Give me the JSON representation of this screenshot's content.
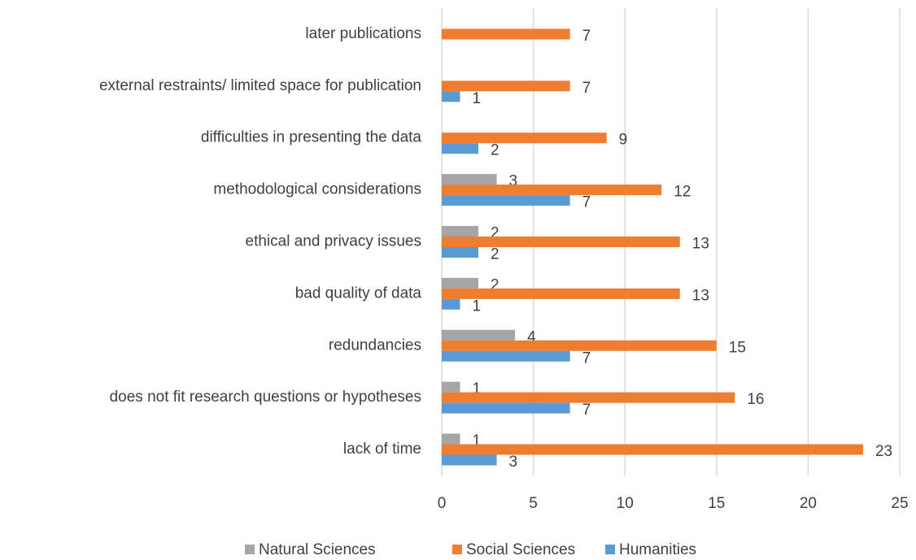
{
  "chart_data": {
    "type": "bar",
    "orientation": "horizontal",
    "categories": [
      "lack of time",
      "does not fit research questions or hypotheses",
      "redundancies",
      "bad quality of data",
      "ethical and privacy issues",
      "methodological considerations",
      "difficulties in presenting the data",
      "external restraints/ limited space for publication",
      "later publications"
    ],
    "series": [
      {
        "name": "Natural Sciences",
        "color": "#a5a5a5",
        "values": [
          1,
          1,
          4,
          2,
          2,
          3,
          null,
          null,
          null
        ]
      },
      {
        "name": "Social Sciences",
        "color": "#ed7d31",
        "values": [
          23,
          16,
          15,
          13,
          13,
          12,
          9,
          7,
          7
        ]
      },
      {
        "name": "Humanities",
        "color": "#5b9bd5",
        "values": [
          3,
          7,
          7,
          1,
          2,
          7,
          2,
          1,
          null
        ]
      }
    ],
    "xlim": [
      0,
      25
    ],
    "xticks": [
      0,
      5,
      10,
      15,
      20,
      25
    ],
    "grid": true,
    "legend": "bottom"
  }
}
